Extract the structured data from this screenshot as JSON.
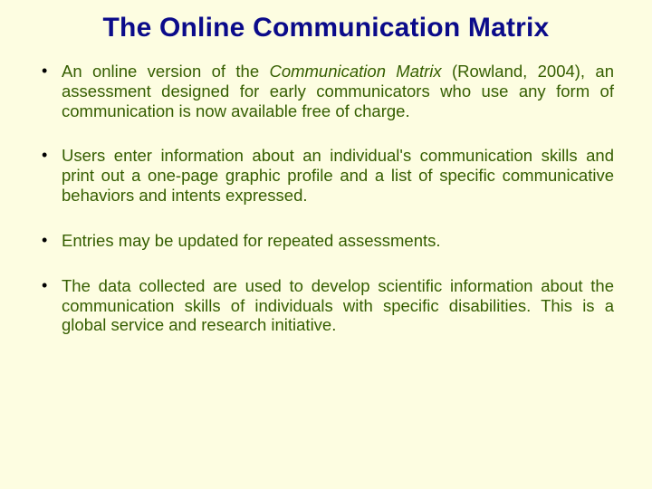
{
  "slide": {
    "background_color": "#fdfde1",
    "title": {
      "text": "The Online Communication Matrix",
      "color": "#0b0b8a",
      "font_size_pt": 30,
      "font_weight": "bold",
      "align": "center"
    },
    "body_text_color": "#355e00",
    "bullet_color": "#000000",
    "body_font_size_pt": 18.5,
    "bullets": [
      {
        "prefix": "An online version of the ",
        "italic": "Communication Matrix",
        "suffix": " (Rowland, 2004), an assessment designed for early communicators who use any form of communication is now available free of charge."
      },
      {
        "prefix": "Users enter information about an individual's communication skills and print out a one-page graphic profile and a list of specific communicative behaviors and intents expressed.",
        "italic": "",
        "suffix": ""
      },
      {
        "prefix": "Entries may be updated for repeated assessments.",
        "italic": "",
        "suffix": ""
      },
      {
        "prefix": "The data collected are used to develop scientific information about the communication skills of individuals with specific disabilities. This is a global service and research initiative.",
        "italic": "",
        "suffix": ""
      }
    ]
  }
}
